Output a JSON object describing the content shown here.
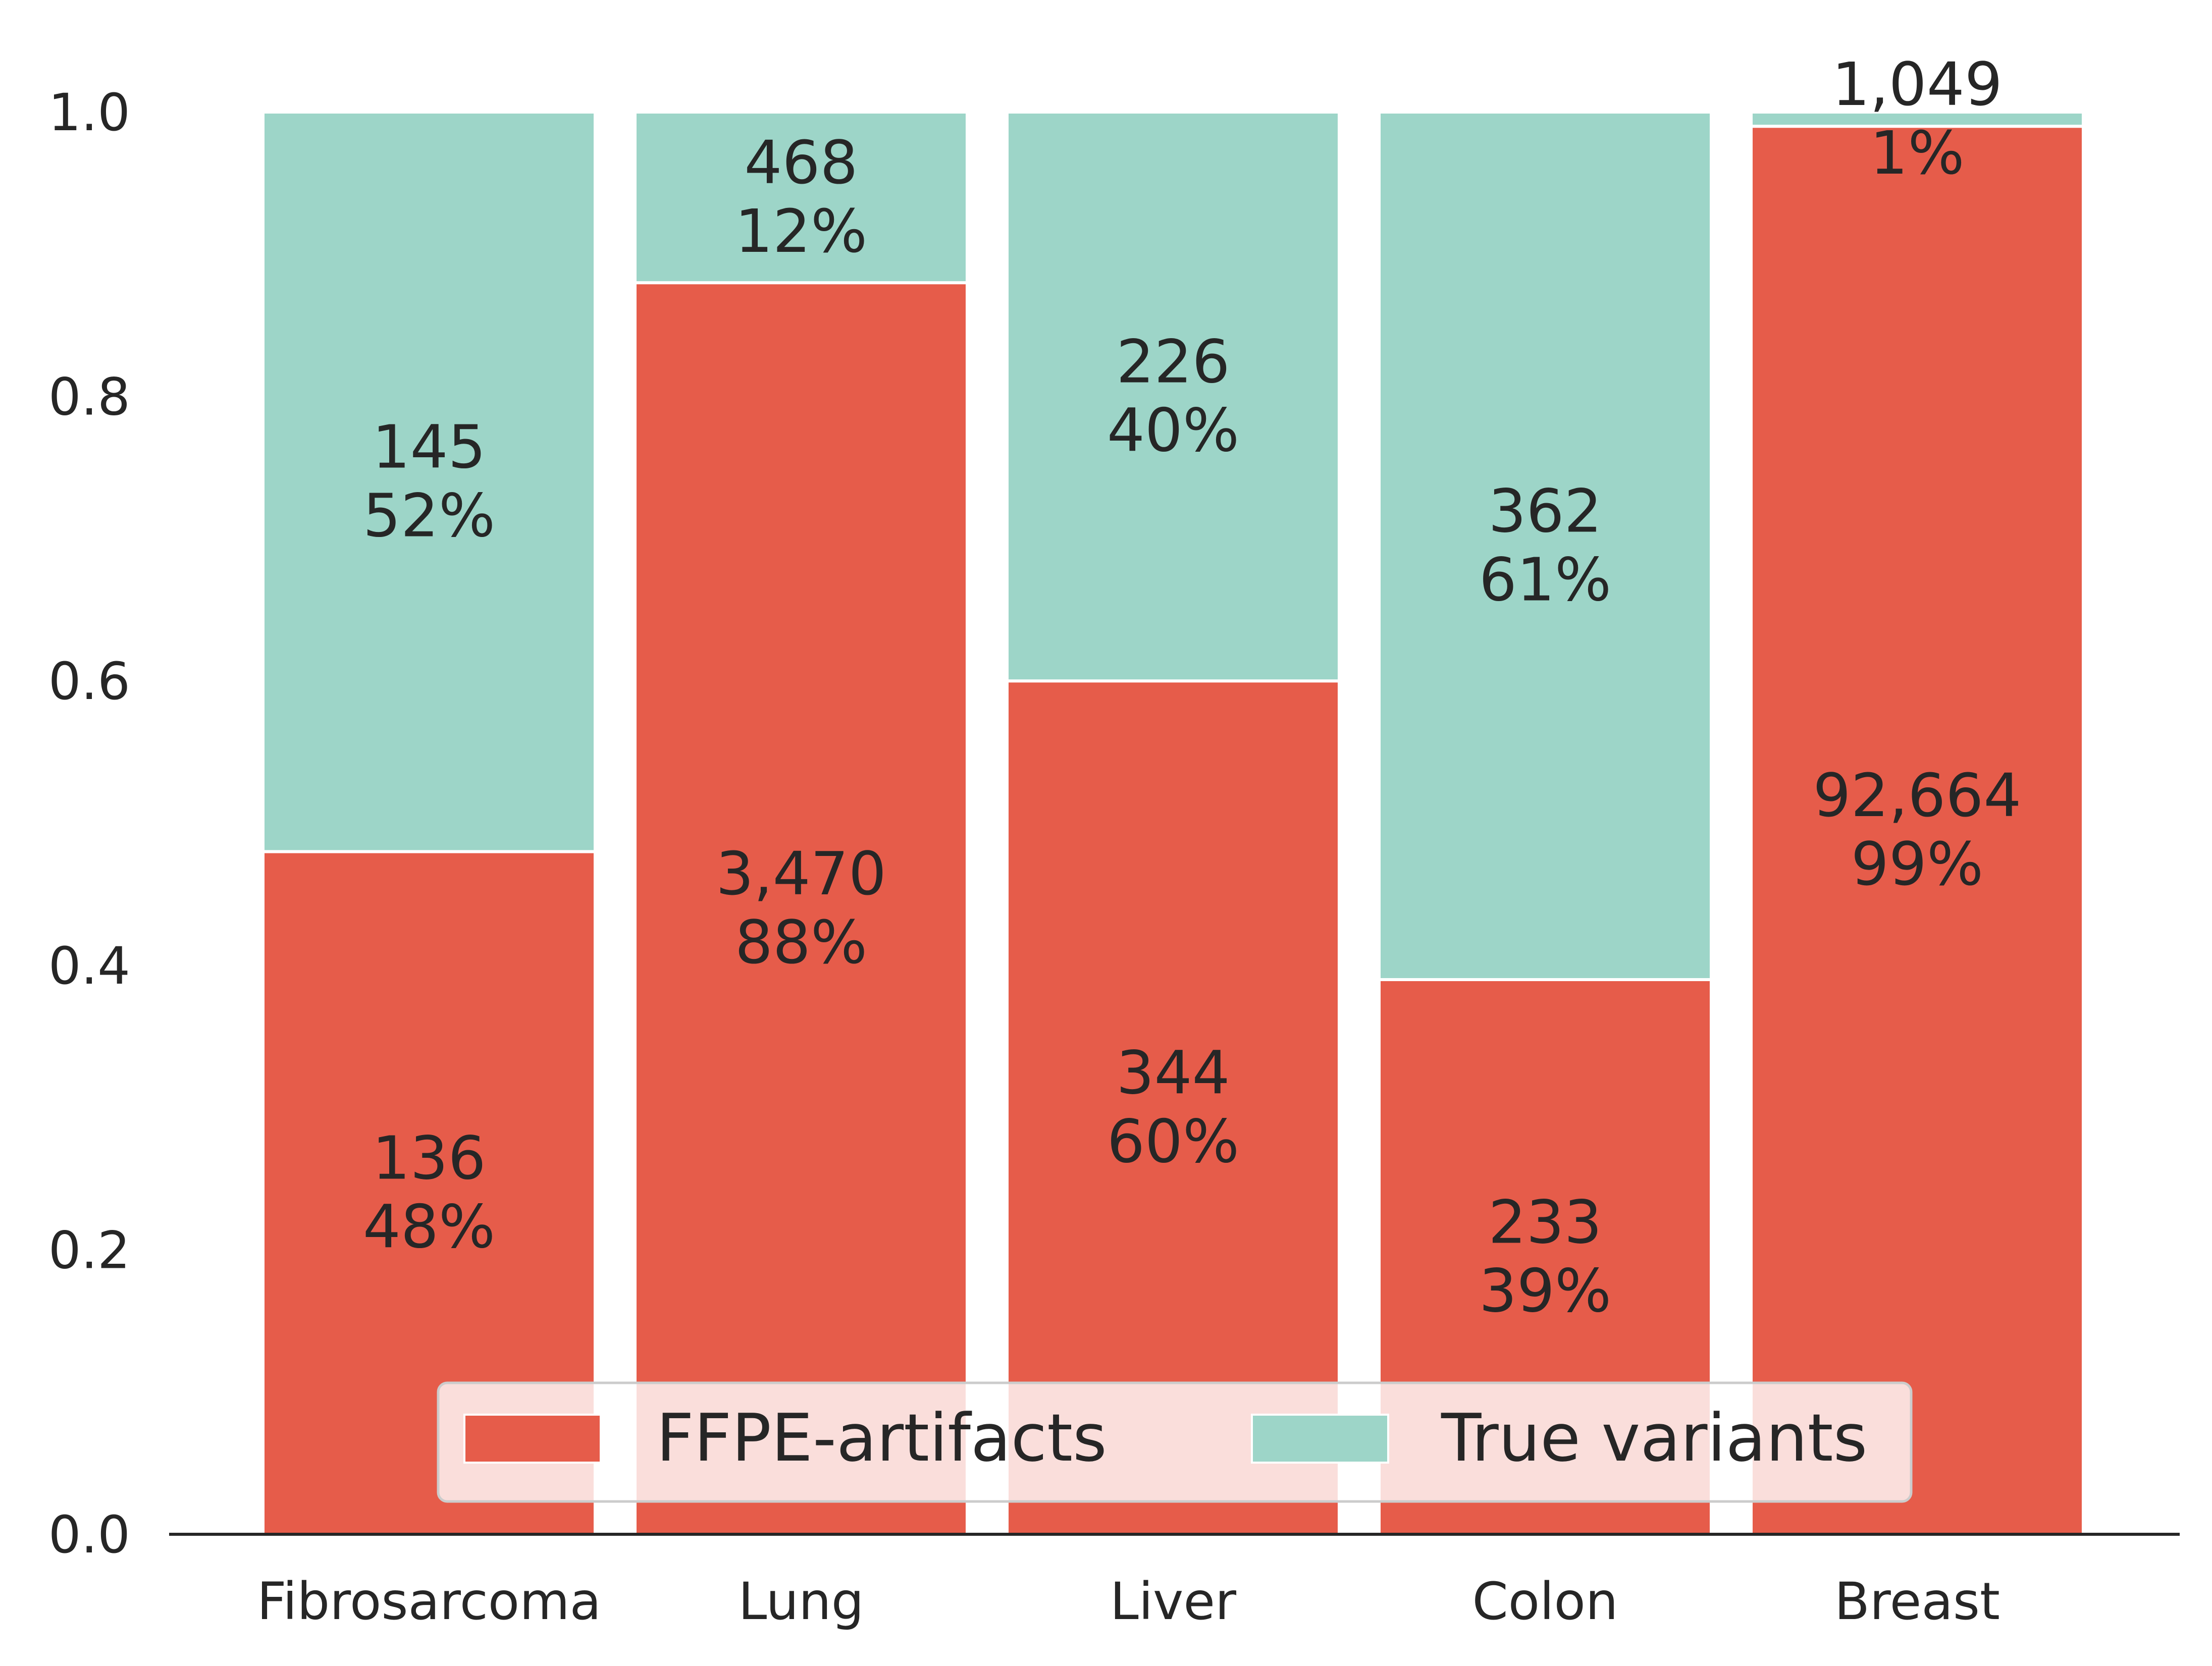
{
  "chart_data": {
    "type": "bar",
    "stacked": true,
    "normalized": true,
    "categories": [
      "Fibrosarcoma",
      "Lung",
      "Liver",
      "Colon",
      "Breast"
    ],
    "series": [
      {
        "name": "FFPE-artifacts",
        "color": "#e65c4a",
        "values": [
          0.48,
          0.88,
          0.6,
          0.39,
          0.99
        ],
        "counts": [
          "136",
          "3,470",
          "344",
          "233",
          "92,664"
        ],
        "percents": [
          "48%",
          "88%",
          "60%",
          "39%",
          "99%"
        ]
      },
      {
        "name": "True variants",
        "color": "#9dd5c8",
        "values": [
          0.52,
          0.12,
          0.4,
          0.61,
          0.01
        ],
        "counts": [
          "145",
          "468",
          "226",
          "362",
          "1,049"
        ],
        "percents": [
          "52%",
          "12%",
          "40%",
          "61%",
          "1%"
        ]
      }
    ],
    "ylim": [
      0,
      1.0
    ],
    "yticks": [
      "0.0",
      "0.2",
      "0.4",
      "0.6",
      "0.8",
      "1.0"
    ],
    "xlabel": "",
    "ylabel": "",
    "title": "",
    "grid": false,
    "legend": {
      "placement": "bottom-center",
      "columns": 2
    }
  }
}
